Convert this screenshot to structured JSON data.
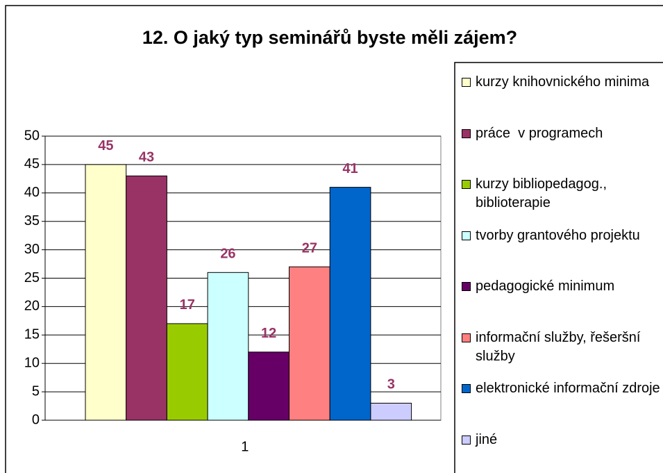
{
  "chart_data": {
    "type": "bar",
    "title": "12. O jaký typ seminářů byste měli zájem?",
    "categories": [
      "1"
    ],
    "series": [
      {
        "name": "kurzy knihovnického minima",
        "color": "#ffffcc",
        "values": [
          45
        ]
      },
      {
        "name": "práce  v programech",
        "color": "#993366",
        "values": [
          43
        ]
      },
      {
        "name": "kurzy bibliopedagog., biblioterapie",
        "color": "#99cc00",
        "values": [
          17
        ]
      },
      {
        "name": "tvorby grantového projektu",
        "color": "#ccffff",
        "values": [
          26
        ]
      },
      {
        "name": "pedagogické minimum",
        "color": "#660066",
        "values": [
          12
        ]
      },
      {
        "name": "informační služby, řešeršní služby",
        "color": "#ff8080",
        "values": [
          27
        ]
      },
      {
        "name": "elektronické informační zdroje",
        "color": "#0066cc",
        "values": [
          41
        ]
      },
      {
        "name": "jiné",
        "color": "#ccccff",
        "values": [
          3
        ]
      }
    ],
    "ylim": [
      0,
      50
    ],
    "yticks": [
      0,
      5,
      10,
      15,
      20,
      25,
      30,
      35,
      40,
      45,
      50
    ],
    "grid": true,
    "legend": "right",
    "value_label_color": "#993366"
  }
}
